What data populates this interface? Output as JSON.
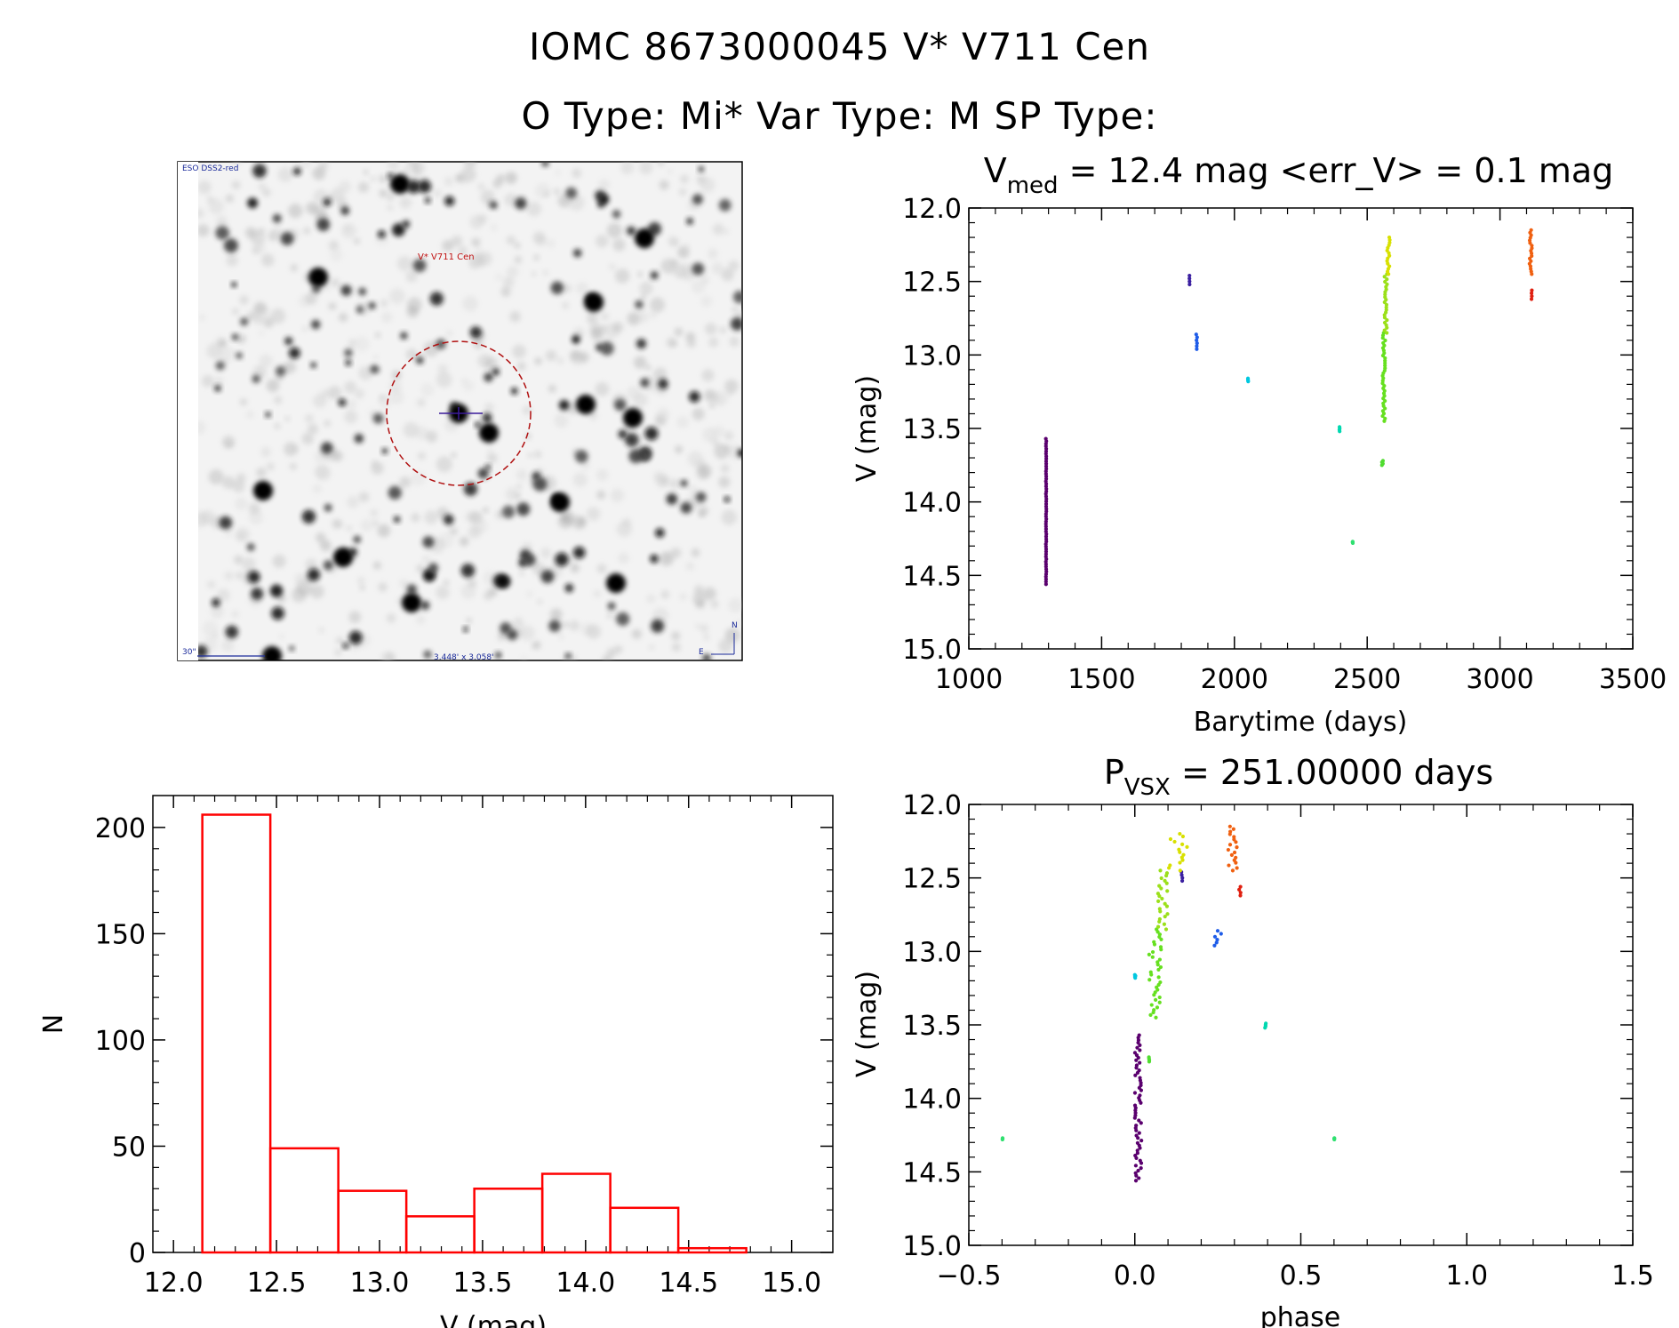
{
  "header": {
    "line1": "IOMC 8673000045   V* V711 Cen",
    "line2": "O Type: Mi*  Var Type: M  SP Type:"
  },
  "finder": {
    "survey_label": "ESO DSS2-red",
    "target_label": "V* V711 Cen",
    "scale_label": "30\"",
    "fov_label": "3.448' x 3.058'",
    "north_label": "N",
    "east_label": "E"
  },
  "chart_data": [
    {
      "type": "scatter",
      "id": "lightcurve",
      "title_prefix": "V",
      "title_sub": "med",
      "title_rest": " = 12.4 mag <err_V> = 0.1 mag",
      "xlabel": "Barytime (days)",
      "ylabel": "V (mag)",
      "xlim": [
        1000,
        3500
      ],
      "ylim": [
        15.0,
        12.0
      ],
      "xticks": [
        1000,
        1500,
        2000,
        2500,
        3000,
        3500
      ],
      "xtick_labels": [
        "1000",
        "1500",
        "2000",
        "2500",
        "3000",
        "3500"
      ],
      "yticks": [
        12.0,
        12.5,
        13.0,
        13.5,
        14.0,
        14.5,
        15.0
      ],
      "ytick_labels": [
        "12.0",
        "12.5",
        "13.0",
        "13.5",
        "14.0",
        "14.5",
        "15.0"
      ],
      "groups": [
        {
          "color": "#5a006e",
          "x": [
            1290,
            1292
          ],
          "y": [
            13.57,
            14.56
          ]
        },
        {
          "color": "#3a1fa0",
          "x": [
            1830,
            1832
          ],
          "y": [
            12.46,
            12.52
          ]
        },
        {
          "color": "#1e5ce8",
          "x": [
            1855,
            1860
          ],
          "y": [
            12.86,
            12.96
          ]
        },
        {
          "color": "#00c8e0",
          "x": [
            2050,
            2052
          ],
          "y": [
            13.16,
            13.18
          ]
        },
        {
          "color": "#00d8b0",
          "x": [
            2395,
            2397
          ],
          "y": [
            13.49,
            13.52
          ]
        },
        {
          "color": "#30e070",
          "x": [
            2445,
            2446
          ],
          "y": [
            14.27,
            14.28
          ]
        },
        {
          "color": "#50dc30",
          "x": [
            2555,
            2560
          ],
          "y": [
            13.72,
            13.75
          ]
        },
        {
          "color": "#66e020",
          "x": [
            2558,
            2568
          ],
          "y": [
            12.85,
            13.45
          ]
        },
        {
          "color": "#9be01a",
          "x": [
            2565,
            2575
          ],
          "y": [
            12.45,
            12.85
          ]
        },
        {
          "color": "#d8e000",
          "x": [
            2572,
            2585
          ],
          "y": [
            12.2,
            12.45
          ]
        },
        {
          "color": "#f06010",
          "x": [
            3110,
            3120
          ],
          "y": [
            12.15,
            12.45
          ]
        },
        {
          "color": "#e02010",
          "x": [
            3118,
            3122
          ],
          "y": [
            12.56,
            12.62
          ]
        }
      ]
    },
    {
      "type": "bar",
      "id": "histogram",
      "xlabel": "V (mag)",
      "ylabel": "N",
      "xlim": [
        11.9,
        15.2
      ],
      "ylim": [
        0,
        215
      ],
      "xticks": [
        12.0,
        12.5,
        13.0,
        13.5,
        14.0,
        14.5,
        15.0
      ],
      "xtick_labels": [
        "12.0",
        "12.5",
        "13.0",
        "13.5",
        "14.0",
        "14.5",
        "15.0"
      ],
      "yticks": [
        0,
        50,
        100,
        150,
        200
      ],
      "ytick_labels": [
        "0",
        "50",
        "100",
        "150",
        "200"
      ],
      "bin_edges": [
        12.14,
        12.47,
        12.8,
        13.13,
        13.46,
        13.79,
        14.12,
        14.45,
        14.78
      ],
      "values": [
        206,
        49,
        29,
        17,
        30,
        37,
        21,
        2
      ],
      "color": "#ff0000"
    },
    {
      "type": "scatter",
      "id": "phased",
      "title_prefix": "P",
      "title_sub": "VSX",
      "title_rest": " = 251.00000 days",
      "xlabel": "phase",
      "ylabel": "V (mag)",
      "xlim": [
        -0.5,
        1.5
      ],
      "ylim": [
        15.0,
        12.0
      ],
      "xticks": [
        -0.5,
        0.0,
        0.5,
        1.0,
        1.5
      ],
      "xtick_labels": [
        "−0.5",
        "0.0",
        "0.5",
        "1.0",
        "1.5"
      ],
      "yticks": [
        12.0,
        12.5,
        13.0,
        13.5,
        14.0,
        14.5,
        15.0
      ],
      "ytick_labels": [
        "12.0",
        "12.5",
        "13.0",
        "13.5",
        "14.0",
        "14.5",
        "15.0"
      ],
      "groups": [
        {
          "color": "#5a006e",
          "x": [
            0.0,
            0.02
          ],
          "y": [
            13.57,
            14.56
          ]
        },
        {
          "color": "#3a1fa0",
          "x": [
            0.14,
            0.145
          ],
          "y": [
            12.46,
            12.52
          ]
        },
        {
          "color": "#1e5ce8",
          "x": [
            0.24,
            0.26
          ],
          "y": [
            12.86,
            12.96
          ]
        },
        {
          "color": "#00c8e0",
          "x": [
            0.0,
            0.005
          ],
          "y": [
            13.16,
            13.18
          ]
        },
        {
          "color": "#00d8b0",
          "x": [
            0.39,
            0.395
          ],
          "y": [
            13.49,
            13.52
          ]
        },
        {
          "color": "#30e070",
          "x": [
            -0.4,
            -0.398
          ],
          "y": [
            14.27,
            14.28
          ]
        },
        {
          "color": "#30e070",
          "x": [
            0.6,
            0.602
          ],
          "y": [
            14.27,
            14.28
          ]
        },
        {
          "color": "#50dc30",
          "x": [
            0.04,
            0.045
          ],
          "y": [
            13.72,
            13.75
          ]
        },
        {
          "color": "#66e020",
          "x": [
            0.04,
            0.08
          ],
          "y": [
            12.85,
            13.45
          ]
        },
        {
          "color": "#9be01a",
          "x": [
            0.07,
            0.1
          ],
          "y": [
            12.45,
            12.85
          ]
        },
        {
          "color": "#d8e000",
          "x": [
            0.1,
            0.16
          ],
          "y": [
            12.2,
            12.45
          ]
        },
        {
          "color": "#f06010",
          "x": [
            0.28,
            0.31
          ],
          "y": [
            12.15,
            12.45
          ]
        },
        {
          "color": "#e02010",
          "x": [
            0.31,
            0.32
          ],
          "y": [
            12.56,
            12.62
          ]
        }
      ]
    }
  ]
}
